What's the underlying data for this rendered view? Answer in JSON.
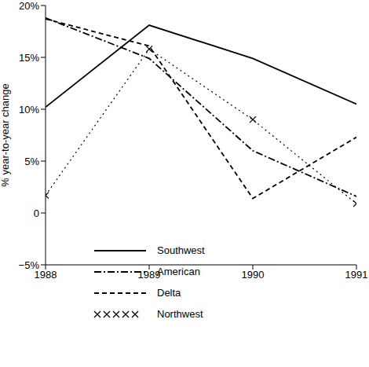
{
  "chart_data": {
    "type": "line",
    "y_label": "% year-to-year change",
    "x": [
      1988,
      1989,
      1990,
      1991
    ],
    "xlim": [
      1988,
      1991
    ],
    "xticks": [
      1988,
      1989,
      1990,
      1991
    ],
    "ylim": [
      -5,
      20
    ],
    "yticks": [
      {
        "value": -5,
        "label": "−5%"
      },
      0,
      {
        "value": 5,
        "label": "5%"
      },
      {
        "value": 10,
        "label": "10%"
      },
      {
        "value": 15,
        "label": "15%"
      },
      {
        "value": 20,
        "label": "20%"
      }
    ],
    "grid": false,
    "legend": "lower left",
    "series": [
      {
        "name": "Southwest",
        "color": "#000000",
        "line_style": "solid",
        "values": [
          10.2,
          18.1,
          14.9,
          10.5
        ]
      },
      {
        "name": "American",
        "color": "#000000",
        "line_style": "dashdot",
        "values": [
          18.8,
          14.9,
          6.0,
          1.6
        ]
      },
      {
        "name": "Delta",
        "color": "#000000",
        "line_style": "dashed",
        "values": [
          18.7,
          16.1,
          1.4,
          7.3
        ]
      },
      {
        "name": "Northwest",
        "color": "#000000",
        "line_style": "dotted",
        "marker": "x",
        "values": [
          1.7,
          15.8,
          9.0,
          0.9
        ]
      }
    ]
  }
}
